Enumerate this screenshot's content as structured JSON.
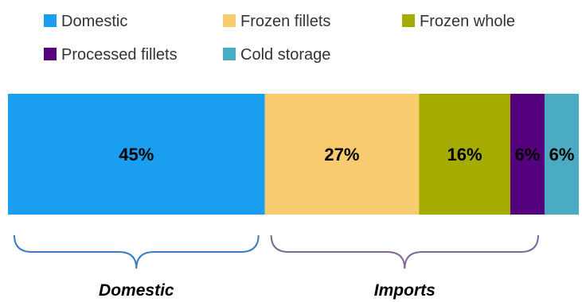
{
  "chart_data": {
    "type": "bar",
    "orientation": "horizontal-stacked-100",
    "series": [
      {
        "name": "Domestic",
        "value": 45,
        "label": "45%",
        "color": "#1a9ff0"
      },
      {
        "name": "Frozen fillets",
        "value": 27,
        "label": "27%",
        "color": "#f9cb6f"
      },
      {
        "name": "Frozen whole",
        "value": 16,
        "label": "16%",
        "color": "#a6ab00"
      },
      {
        "name": "Processed fillets",
        "value": 6,
        "label": "6%",
        "color": "#55027f"
      },
      {
        "name": "Cold storage",
        "value": 6,
        "label": "6%",
        "color": "#4aabc2"
      }
    ],
    "legend": {
      "placement": "top-left"
    },
    "groups": [
      {
        "label": "Domestic",
        "series": [
          "Domestic"
        ],
        "brace_color": "#3a7ec1"
      },
      {
        "label": "Imports",
        "series": [
          "Frozen fillets",
          "Frozen whole",
          "Processed fillets"
        ],
        "brace_color": "#7f6899"
      }
    ]
  }
}
